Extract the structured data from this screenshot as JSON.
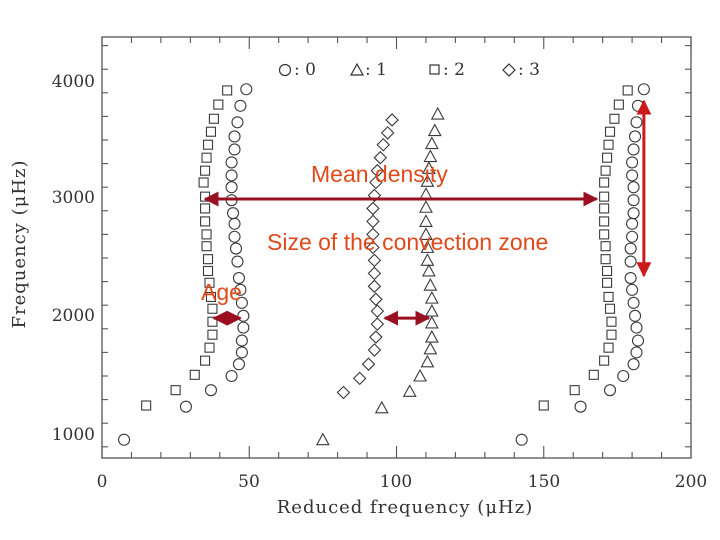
{
  "chart_data": {
    "type": "scatter",
    "title": "",
    "xlabel": "Reduced frequency (μHz)",
    "ylabel": "Frequency (μHz)",
    "xlim": [
      0,
      200
    ],
    "ylim": [
      850,
      4300
    ],
    "x_ticks": [
      0,
      50,
      100,
      150,
      200
    ],
    "y_ticks": [
      1000,
      2000,
      3000,
      4000
    ],
    "x_tick_labels": [
      "0",
      "50",
      "100",
      "150",
      "200"
    ],
    "y_tick_labels": [
      "1000",
      "2000",
      "3000",
      "4000"
    ],
    "legend": {
      "position": "top",
      "entries": [
        {
          "symbol": "circle",
          "label": ": 0"
        },
        {
          "symbol": "triangle",
          "label": ": 1"
        },
        {
          "symbol": "square",
          "label": ": 2"
        },
        {
          "symbol": "diamond",
          "label": ": 3"
        }
      ]
    },
    "series": [
      {
        "symbol": "circle",
        "values": [
          [
            7.5,
            960
          ],
          [
            142.5,
            960
          ],
          [
            28.5,
            1240
          ],
          [
            162.5,
            1240
          ],
          [
            37,
            1380
          ],
          [
            172.5,
            1380
          ],
          [
            44,
            1500
          ],
          [
            177,
            1500
          ],
          [
            46.5,
            1600
          ],
          [
            180.5,
            1600
          ],
          [
            47.5,
            1700
          ],
          [
            181.5,
            1700
          ],
          [
            47.5,
            1800
          ],
          [
            182,
            1800
          ],
          [
            48,
            1910
          ],
          [
            181.5,
            1910
          ],
          [
            48,
            2010
          ],
          [
            181,
            2010
          ],
          [
            47.5,
            2120
          ],
          [
            180.5,
            2120
          ],
          [
            47,
            2230
          ],
          [
            180,
            2230
          ],
          [
            46.5,
            2330
          ],
          [
            179.5,
            2330
          ],
          [
            46,
            2470
          ],
          [
            179.5,
            2470
          ],
          [
            45.5,
            2580
          ],
          [
            179.5,
            2580
          ],
          [
            45,
            2680
          ],
          [
            180,
            2680
          ],
          [
            45,
            2790
          ],
          [
            180,
            2790
          ],
          [
            44.5,
            2880
          ],
          [
            180.5,
            2880
          ],
          [
            44,
            2990
          ],
          [
            180.5,
            2990
          ],
          [
            44,
            3100
          ],
          [
            180.5,
            3100
          ],
          [
            44,
            3200
          ],
          [
            180,
            3200
          ],
          [
            44,
            3310
          ],
          [
            180,
            3310
          ],
          [
            45,
            3420
          ],
          [
            180.5,
            3420
          ],
          [
            45,
            3530
          ],
          [
            181,
            3530
          ],
          [
            46,
            3650
          ],
          [
            181.5,
            3650
          ],
          [
            47,
            3790
          ],
          [
            182,
            3790
          ],
          [
            49,
            3930
          ],
          [
            184,
            3930
          ]
        ]
      },
      {
        "symbol": "triangle",
        "values": [
          [
            75,
            960
          ],
          [
            95,
            1230
          ],
          [
            104.5,
            1370
          ],
          [
            108,
            1500
          ],
          [
            110.5,
            1620
          ],
          [
            111.5,
            1730
          ],
          [
            112,
            1830
          ],
          [
            112,
            1950
          ],
          [
            112,
            2050
          ],
          [
            112,
            2160
          ],
          [
            111.5,
            2270
          ],
          [
            111,
            2390
          ],
          [
            110.5,
            2480
          ],
          [
            110.5,
            2590
          ],
          [
            110,
            2700
          ],
          [
            110,
            2810
          ],
          [
            110,
            2930
          ],
          [
            110,
            3040
          ],
          [
            110.5,
            3150
          ],
          [
            111,
            3260
          ],
          [
            111.5,
            3360
          ],
          [
            112,
            3470
          ],
          [
            113,
            3580
          ],
          [
            114,
            3720
          ]
        ]
      },
      {
        "symbol": "square",
        "values": [
          [
            15,
            1250
          ],
          [
            25,
            1380
          ],
          [
            31.5,
            1510
          ],
          [
            35,
            1630
          ],
          [
            36.5,
            1740
          ],
          [
            37.5,
            1850
          ],
          [
            37.5,
            1960
          ],
          [
            37.5,
            2070
          ],
          [
            37,
            2170
          ],
          [
            36.5,
            2290
          ],
          [
            36,
            2390
          ],
          [
            36,
            2490
          ],
          [
            35.5,
            2600
          ],
          [
            35.5,
            2700
          ],
          [
            35,
            2810
          ],
          [
            35,
            2920
          ],
          [
            35,
            3020
          ],
          [
            34.5,
            3140
          ],
          [
            35,
            3240
          ],
          [
            35.5,
            3350
          ],
          [
            36,
            3460
          ],
          [
            37,
            3570
          ],
          [
            38,
            3680
          ],
          [
            39.5,
            3800
          ],
          [
            42.5,
            3920
          ],
          [
            150,
            1250
          ],
          [
            160.5,
            1380
          ],
          [
            167,
            1510
          ],
          [
            170.5,
            1630
          ],
          [
            172,
            1740
          ],
          [
            173,
            1850
          ],
          [
            173,
            1960
          ],
          [
            172.5,
            2070
          ],
          [
            172,
            2170
          ],
          [
            171.5,
            2290
          ],
          [
            171.5,
            2390
          ],
          [
            171,
            2490
          ],
          [
            171,
            2600
          ],
          [
            170.5,
            2700
          ],
          [
            170.5,
            2810
          ],
          [
            170.5,
            2920
          ],
          [
            170.5,
            3020
          ],
          [
            170.5,
            3140
          ],
          [
            171,
            3240
          ],
          [
            171.5,
            3350
          ],
          [
            172,
            3460
          ],
          [
            172.5,
            3570
          ],
          [
            174,
            3680
          ],
          [
            175.5,
            3800
          ],
          [
            178.5,
            3920
          ]
        ]
      },
      {
        "symbol": "diamond",
        "values": [
          [
            82,
            1360
          ],
          [
            87.5,
            1480
          ],
          [
            90.5,
            1600
          ],
          [
            92.5,
            1720
          ],
          [
            93,
            1830
          ],
          [
            93.5,
            1940
          ],
          [
            93.5,
            2050
          ],
          [
            93,
            2150
          ],
          [
            92.5,
            2260
          ],
          [
            92.5,
            2370
          ],
          [
            92.5,
            2480
          ],
          [
            92,
            2590
          ],
          [
            92,
            2700
          ],
          [
            92,
            2810
          ],
          [
            92,
            2920
          ],
          [
            92.5,
            3030
          ],
          [
            93,
            3140
          ],
          [
            93.5,
            3240
          ],
          [
            94.5,
            3350
          ],
          [
            95.5,
            3460
          ],
          [
            97,
            3560
          ],
          [
            98.5,
            3670
          ]
        ]
      }
    ],
    "annotations": [
      {
        "text": "Mean density",
        "color": "#e04a1a",
        "arrow_color": "#9b1020",
        "arrow": "horizontal, double-headed",
        "from": [
          35,
          3000
        ],
        "to": [
          168,
          3000
        ]
      },
      {
        "text": "Size of the convection zone",
        "color": "#e04a1a",
        "arrow_color": "#9b1020",
        "arrow": "horizontal, double-headed",
        "from": [
          96,
          1990
        ],
        "to": [
          111,
          1990
        ]
      },
      {
        "text": "Age",
        "color": "#e04a1a",
        "arrow_color": "#9b1020",
        "arrow": "horizontal, double-headed",
        "from": [
          38,
          1990
        ],
        "to": [
          47,
          1990
        ]
      },
      {
        "text": "",
        "color": "#e04a1a",
        "arrow_color": "#cc1a1a",
        "arrow": "vertical, double-headed",
        "from": [
          184,
          2350
        ],
        "to": [
          184,
          3830
        ]
      }
    ]
  }
}
